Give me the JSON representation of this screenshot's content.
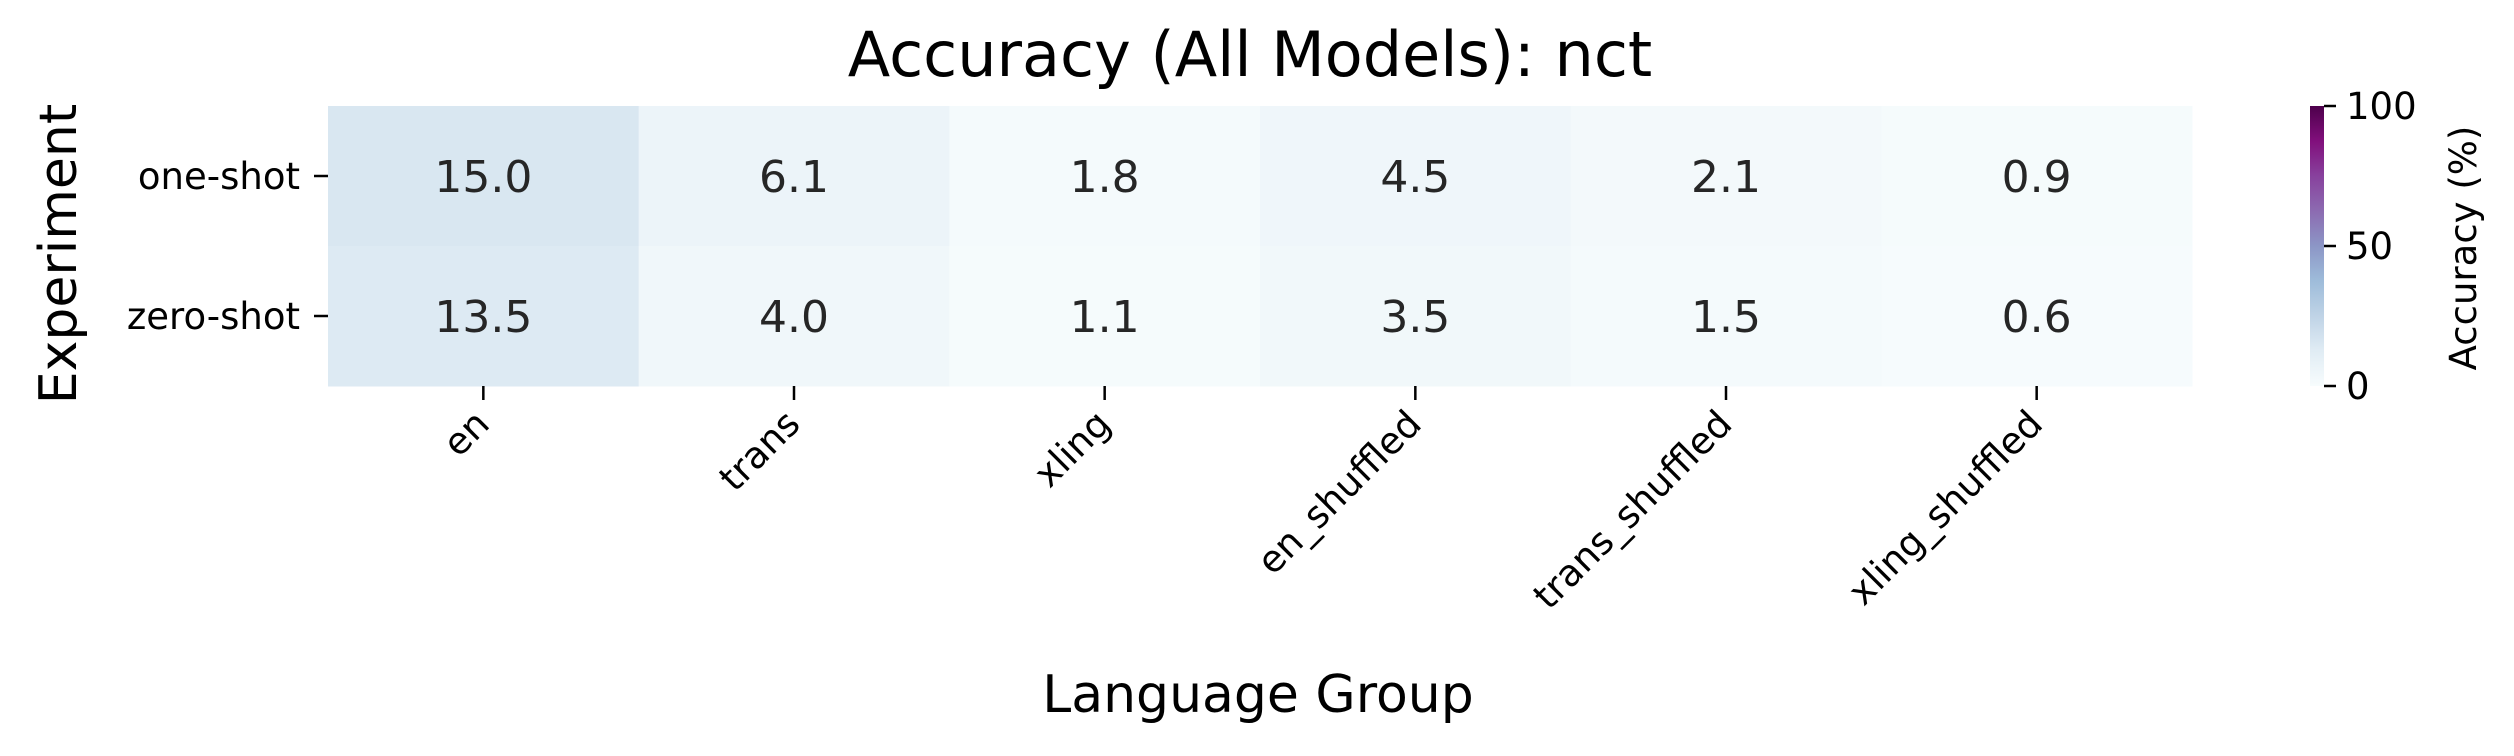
{
  "chart_data": {
    "type": "heatmap",
    "title": "Accuracy (All Models): nct",
    "xlabel": "Language Group",
    "ylabel": "Experiment",
    "x_categories": [
      "en",
      "trans",
      "xling",
      "en_shuffled",
      "trans_shuffled",
      "xling_shuffled"
    ],
    "y_categories": [
      "one-shot",
      "zero-shot"
    ],
    "values": [
      [
        15.0,
        6.1,
        1.8,
        4.5,
        2.1,
        0.9
      ],
      [
        13.5,
        4.0,
        1.1,
        3.5,
        1.5,
        0.6
      ]
    ],
    "value_format_decimals": 1,
    "colorbar": {
      "label": "Accuracy (%)",
      "range": [
        0,
        100
      ],
      "ticks": [
        "0",
        "50",
        "100"
      ],
      "colormap": "BuPu",
      "colors": [
        "#f7fcfd",
        "#e0ecf4",
        "#bfd3e6",
        "#9ebcda",
        "#8c96c6",
        "#8c6bb1",
        "#88419d",
        "#810f7c",
        "#4d004b"
      ]
    },
    "grid": false
  }
}
